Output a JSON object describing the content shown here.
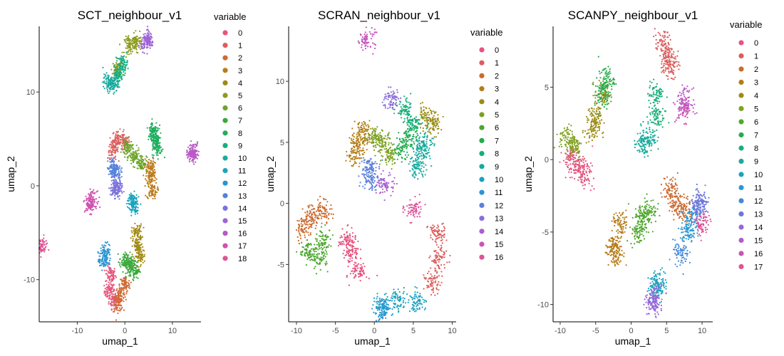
{
  "chart_data": [
    {
      "type": "scatter",
      "title": "SCT_neighbour_v1",
      "xlabel": "umap_1",
      "ylabel": "umap_2",
      "xlim": [
        -18,
        16
      ],
      "ylim": [
        -14.5,
        17
      ],
      "xticks": [
        -10,
        0,
        10
      ],
      "yticks": [
        -10,
        0,
        10
      ],
      "legend": {
        "title": "variable",
        "position": "right",
        "entries": [
          "0",
          "1",
          "2",
          "3",
          "4",
          "5",
          "6",
          "7",
          "8",
          "9",
          "10",
          "11",
          "12",
          "13",
          "14",
          "15",
          "16",
          "17",
          "18"
        ]
      },
      "clusters": [
        {
          "name": "0",
          "color": "#E7547C",
          "centers": [
            [
              -3.2,
              -11.2
            ],
            [
              -3.0,
              -9.5
            ],
            [
              -2.2,
              -12.2
            ]
          ]
        },
        {
          "name": "1",
          "color": "#DC5F5E",
          "centers": [
            [
              -1.5,
              5.0
            ],
            [
              -2.5,
              3.8
            ],
            [
              0.0,
              4.5
            ]
          ]
        },
        {
          "name": "2",
          "color": "#CF6A32",
          "centers": [
            [
              -0.8,
              -11.5
            ],
            [
              -1.5,
              -12.5
            ],
            [
              0.0,
              -10.5
            ]
          ]
        },
        {
          "name": "3",
          "color": "#BC7A1A",
          "centers": [
            [
              5.5,
              1.0
            ],
            [
              5.7,
              -0.5
            ],
            [
              5.2,
              2.0
            ]
          ]
        },
        {
          "name": "4",
          "color": "#A08A15",
          "centers": [
            [
              2.8,
              -6.5
            ],
            [
              2.5,
              -5.0
            ],
            [
              3.2,
              -7.5
            ]
          ]
        },
        {
          "name": "5",
          "color": "#8C9A1D",
          "centers": [
            [
              1.0,
              15.0
            ],
            [
              -1.5,
              12.5
            ],
            [
              2.5,
              15.3
            ]
          ]
        },
        {
          "name": "6",
          "color": "#6BA52A",
          "centers": [
            [
              2.0,
              3.0
            ],
            [
              0.5,
              4.0
            ],
            [
              3.5,
              2.5
            ]
          ]
        },
        {
          "name": "7",
          "color": "#3AA83A",
          "centers": [
            [
              1.0,
              -8.5
            ],
            [
              0.0,
              -8.0
            ],
            [
              2.0,
              -9.0
            ]
          ]
        },
        {
          "name": "8",
          "color": "#1FAD5E",
          "centers": [
            [
              6.5,
              5.0
            ],
            [
              6.8,
              4.0
            ],
            [
              6.0,
              6.0
            ]
          ]
        },
        {
          "name": "9",
          "color": "#15AE82",
          "centers": [
            [
              -1.5,
              11.8
            ],
            [
              -0.5,
              13.0
            ]
          ]
        },
        {
          "name": "10",
          "color": "#1AAAA0",
          "centers": [
            [
              -2.5,
              10.8
            ],
            [
              -3.5,
              11.0
            ]
          ]
        },
        {
          "name": "11",
          "color": "#1CA4BD",
          "centers": [
            [
              1.5,
              -1.5
            ],
            [
              1.8,
              -2.2
            ]
          ]
        },
        {
          "name": "12",
          "color": "#2994D3",
          "centers": [
            [
              -4.5,
              -8.0
            ],
            [
              -4.0,
              -7.0
            ]
          ]
        },
        {
          "name": "13",
          "color": "#5481DB",
          "centers": [
            [
              -2.5,
              2.0
            ],
            [
              -2.0,
              1.5
            ]
          ]
        },
        {
          "name": "14",
          "color": "#7D72DB",
          "centers": [
            [
              -2.0,
              -0.5
            ],
            [
              -1.5,
              0.0
            ]
          ]
        },
        {
          "name": "15",
          "color": "#9E64D6",
          "centers": [
            [
              4.5,
              15.3
            ],
            [
              5.0,
              15.5
            ]
          ]
        },
        {
          "name": "16",
          "color": "#B958C6",
          "centers": [
            [
              14.0,
              3.2
            ],
            [
              14.5,
              3.8
            ]
          ]
        },
        {
          "name": "17",
          "color": "#CF52AE",
          "centers": [
            [
              -7.0,
              -1.5
            ],
            [
              -7.3,
              -2.0
            ]
          ]
        },
        {
          "name": "18",
          "color": "#E05494",
          "centers": [
            [
              -17.5,
              -6.5
            ]
          ]
        }
      ]
    },
    {
      "type": "scatter",
      "title": "SCRAN_neighbour_v1",
      "xlabel": "umap_1",
      "ylabel": "umap_2",
      "xlim": [
        -11,
        10.5
      ],
      "ylim": [
        -9.7,
        14.5
      ],
      "xticks": [
        -10,
        -5,
        0,
        5,
        10
      ],
      "yticks": [
        -5,
        0,
        5,
        10
      ],
      "legend": {
        "title": "variable",
        "position": "right",
        "entries": [
          "0",
          "1",
          "2",
          "3",
          "4",
          "5",
          "6",
          "7",
          "8",
          "9",
          "10",
          "11",
          "12",
          "13",
          "14",
          "15",
          "16"
        ]
      },
      "clusters": [
        {
          "name": "0",
          "color": "#E6527F",
          "centers": [
            [
              -3.0,
              -4.0
            ],
            [
              -2.0,
              -5.5
            ],
            [
              -3.5,
              -3.0
            ]
          ]
        },
        {
          "name": "1",
          "color": "#DA5E5D",
          "centers": [
            [
              8.0,
              -2.5
            ],
            [
              8.3,
              -4.5
            ],
            [
              7.5,
              -6.5
            ]
          ]
        },
        {
          "name": "2",
          "color": "#CB6B2E",
          "centers": [
            [
              -8.0,
              -1.0
            ],
            [
              -9.0,
              -2.0
            ],
            [
              -6.5,
              -0.5
            ]
          ]
        },
        {
          "name": "3",
          "color": "#B47D18",
          "centers": [
            [
              -2.0,
              5.0
            ],
            [
              -1.5,
              6.0
            ],
            [
              -2.5,
              4.0
            ]
          ]
        },
        {
          "name": "4",
          "color": "#9A8C14",
          "centers": [
            [
              7.5,
              6.5
            ],
            [
              6.5,
              7.0
            ]
          ]
        },
        {
          "name": "5",
          "color": "#7CA020",
          "centers": [
            [
              1.0,
              5.0
            ],
            [
              2.0,
              4.0
            ],
            [
              0.0,
              5.5
            ]
          ]
        },
        {
          "name": "6",
          "color": "#4CA72F",
          "centers": [
            [
              -6.5,
              -3.0
            ],
            [
              -8.5,
              -4.0
            ],
            [
              -7.0,
              -4.5
            ]
          ]
        },
        {
          "name": "7",
          "color": "#22AB4E",
          "centers": [
            [
              3.5,
              4.5
            ],
            [
              4.5,
              5.5
            ]
          ]
        },
        {
          "name": "8",
          "color": "#16AE79",
          "centers": [
            [
              4.0,
              7.5
            ],
            [
              5.0,
              6.5
            ]
          ]
        },
        {
          "name": "9",
          "color": "#16AA9E",
          "centers": [
            [
              6.0,
              4.0
            ],
            [
              5.5,
              3.0
            ],
            [
              6.5,
              5.0
            ]
          ]
        },
        {
          "name": "10",
          "color": "#1AA1BF",
          "centers": [
            [
              3.0,
              -8.0
            ],
            [
              1.0,
              -8.5
            ],
            [
              5.5,
              -8.0
            ]
          ]
        },
        {
          "name": "11",
          "color": "#2C93D6",
          "centers": [
            [
              1.0,
              -8.7
            ]
          ]
        },
        {
          "name": "12",
          "color": "#5A7FDC",
          "centers": [
            [
              -0.5,
              2.0
            ],
            [
              -0.8,
              3.0
            ]
          ]
        },
        {
          "name": "13",
          "color": "#8A6DDB",
          "centers": [
            [
              2.2,
              8.5
            ]
          ]
        },
        {
          "name": "14",
          "color": "#AB5FD2",
          "centers": [
            [
              1.5,
              1.5
            ]
          ]
        },
        {
          "name": "15",
          "color": "#C655BA",
          "centers": [
            [
              -1.0,
              13.5
            ]
          ]
        },
        {
          "name": "16",
          "color": "#DD5298",
          "centers": [
            [
              5.0,
              -0.5
            ]
          ]
        }
      ]
    },
    {
      "type": "scatter",
      "title": "SCANPY_neighbour_v1",
      "xlabel": "umap_1",
      "ylabel": "umap_2",
      "xlim": [
        -11,
        11.5
      ],
      "ylim": [
        -11.2,
        9.2
      ],
      "xticks": [
        -10,
        -5,
        0,
        5,
        10
      ],
      "yticks": [
        -10,
        -5,
        0,
        5
      ],
      "legend": {
        "title": "variable",
        "position": "right",
        "entries": [
          "0",
          "1",
          "2",
          "3",
          "4",
          "5",
          "6",
          "7",
          "8",
          "9",
          "10",
          "11",
          "12",
          "13",
          "14",
          "15",
          "16",
          "17"
        ]
      },
      "clusters": [
        {
          "name": "0",
          "color": "#E6547E",
          "centers": [
            [
              -7.5,
              -0.5
            ],
            [
              -6.5,
              -1.0
            ],
            [
              -8.5,
              0.0
            ]
          ]
        },
        {
          "name": "1",
          "color": "#DA5E5C",
          "centers": [
            [
              5.0,
              7.0
            ],
            [
              4.5,
              8.0
            ],
            [
              5.5,
              6.5
            ]
          ]
        },
        {
          "name": "2",
          "color": "#CC6A30",
          "centers": [
            [
              6.5,
              -3.0
            ],
            [
              5.5,
              -2.0
            ],
            [
              7.5,
              -3.5
            ]
          ]
        },
        {
          "name": "3",
          "color": "#B57C18",
          "centers": [
            [
              -2.0,
              -6.5
            ],
            [
              -2.5,
              -6.0
            ],
            [
              -1.5,
              -4.5
            ]
          ]
        },
        {
          "name": "4",
          "color": "#9C8C14",
          "centers": [
            [
              -5.0,
              3.0
            ],
            [
              -5.5,
              2.0
            ],
            [
              -4.0,
              4.5
            ]
          ]
        },
        {
          "name": "5",
          "color": "#80A01F",
          "centers": [
            [
              -9.0,
              1.5
            ],
            [
              -8.0,
              1.0
            ]
          ]
        },
        {
          "name": "6",
          "color": "#4FA72E",
          "centers": [
            [
              1.5,
              -4.0
            ],
            [
              2.5,
              -3.5
            ],
            [
              1.0,
              -5.0
            ]
          ]
        },
        {
          "name": "7",
          "color": "#25AB4D",
          "centers": [
            [
              -4.0,
              4.5
            ],
            [
              -3.5,
              5.5
            ]
          ]
        },
        {
          "name": "8",
          "color": "#18AE78",
          "centers": [
            [
              3.5,
              4.5
            ],
            [
              3.5,
              3.0
            ]
          ]
        },
        {
          "name": "9",
          "color": "#17AB9C",
          "centers": [
            [
              1.5,
              1.0
            ],
            [
              2.5,
              1.5
            ]
          ]
        },
        {
          "name": "10",
          "color": "#1BA3BC",
          "centers": [
            [
              4.0,
              -8.5
            ],
            [
              3.5,
              -8.8
            ]
          ]
        },
        {
          "name": "11",
          "color": "#2A98D4",
          "centers": [
            [
              8.5,
              -4.0
            ],
            [
              8.0,
              -5.0
            ]
          ]
        },
        {
          "name": "12",
          "color": "#4388DB",
          "centers": [
            [
              7.0,
              -6.5
            ]
          ]
        },
        {
          "name": "13",
          "color": "#6C77DC",
          "centers": [
            [
              10.0,
              -3.0
            ],
            [
              9.5,
              -3.2
            ]
          ]
        },
        {
          "name": "14",
          "color": "#9668D9",
          "centers": [
            [
              3.0,
              -10.0
            ],
            [
              3.3,
              -9.5
            ]
          ]
        },
        {
          "name": "15",
          "color": "#B55CCB",
          "centers": [
            [
              7.5,
              4.0
            ]
          ]
        },
        {
          "name": "16",
          "color": "#CC53B3",
          "centers": [
            [
              7.5,
              3.5
            ]
          ]
        },
        {
          "name": "17",
          "color": "#DE5496",
          "centers": [
            [
              10.0,
              -4.5
            ]
          ]
        }
      ]
    }
  ]
}
